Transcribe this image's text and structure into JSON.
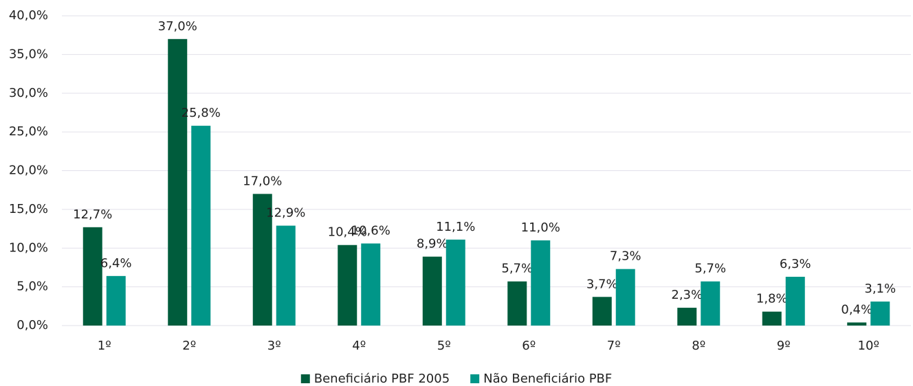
{
  "chart_data": {
    "type": "bar",
    "categories": [
      "1º",
      "2º",
      "3º",
      "4º",
      "5º",
      "6º",
      "7º",
      "8º",
      "9º",
      "10º"
    ],
    "series": [
      {
        "name": "Beneficiário PBF 2005",
        "color": "#005c3c",
        "values": [
          12.7,
          37.0,
          17.0,
          10.4,
          8.9,
          5.7,
          3.7,
          2.3,
          1.8,
          0.4
        ],
        "value_labels": [
          "12,7%",
          "37,0%",
          "17,0%",
          "10,4%",
          "8,9%",
          "5,7%",
          "3,7%",
          "2,3%",
          "1,8%",
          "0,4%"
        ]
      },
      {
        "name": "Não Beneficiário PBF",
        "color": "#009688",
        "values": [
          6.4,
          25.8,
          12.9,
          10.6,
          11.1,
          11.0,
          7.3,
          5.7,
          6.3,
          3.1
        ],
        "value_labels": [
          "6,4%",
          "25,8%",
          "12,9%",
          "10,6%",
          "11,1%",
          "11,0%",
          "7,3%",
          "5,7%",
          "6,3%",
          "3,1%"
        ]
      }
    ],
    "ylim": [
      0,
      40
    ],
    "yticks": [
      {
        "value": 0,
        "label": "0,0%"
      },
      {
        "value": 5,
        "label": "5,0%"
      },
      {
        "value": 10,
        "label": "10,0%"
      },
      {
        "value": 15,
        "label": "15,0%"
      },
      {
        "value": 20,
        "label": "20,0%"
      },
      {
        "value": 25,
        "label": "25,0%"
      },
      {
        "value": 30,
        "label": "30,0%"
      },
      {
        "value": 35,
        "label": "35,0%"
      },
      {
        "value": 40,
        "label": "40,0%"
      }
    ],
    "grid": true,
    "legend": "bottom"
  }
}
